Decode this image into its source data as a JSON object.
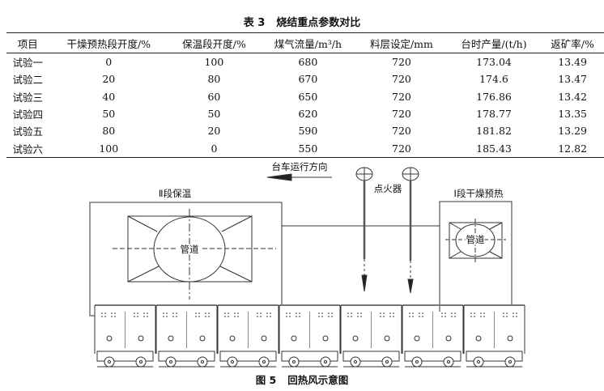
{
  "table": {
    "number": "表 3",
    "title": "烧结重点参数对比",
    "headers": [
      "项目",
      "干燥预热段开度/%",
      "保温段开度/%",
      "煤气流量/m³/h",
      "料层设定/mm",
      "台时产量/(t/h)",
      "返矿率/%"
    ],
    "rows": [
      [
        "试验一",
        "0",
        "100",
        "680",
        "720",
        "173.04",
        "13.49"
      ],
      [
        "试验二",
        "20",
        "80",
        "670",
        "720",
        "174.6",
        "13.47"
      ],
      [
        "试验三",
        "40",
        "60",
        "650",
        "720",
        "176.86",
        "13.42"
      ],
      [
        "试验四",
        "50",
        "50",
        "620",
        "720",
        "178.77",
        "13.35"
      ],
      [
        "试验五",
        "80",
        "20",
        "590",
        "720",
        "181.82",
        "13.29"
      ],
      [
        "试验六",
        "100",
        "0",
        "550",
        "720",
        "185.43",
        "12.82"
      ]
    ]
  },
  "figure": {
    "number": "图 5",
    "caption": "回热风示意图",
    "labels": {
      "direction": "台车运行方向",
      "section2": "Ⅱ段保温",
      "section1": "Ⅰ段干燥预热",
      "igniter": "点火器",
      "pipe_large": "管道",
      "pipe_small": "管道"
    }
  }
}
